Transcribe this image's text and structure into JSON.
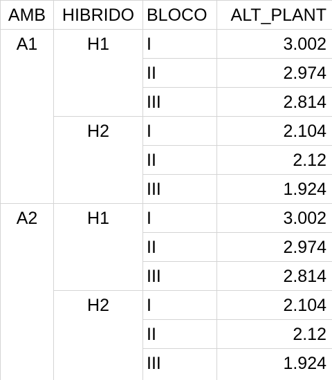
{
  "sheet": {
    "headers": [
      "AMB",
      "HIBRIDO",
      "BLOCO",
      "ALT_PLANT"
    ],
    "rows": [
      {
        "amb": "A1",
        "hibrido": "H1",
        "bloco": "I",
        "alt_plant": "3.002"
      },
      {
        "amb": "",
        "hibrido": "",
        "bloco": "II",
        "alt_plant": "2.974"
      },
      {
        "amb": "",
        "hibrido": "",
        "bloco": "III",
        "alt_plant": "2.814"
      },
      {
        "amb": "",
        "hibrido": "H2",
        "bloco": "I",
        "alt_plant": "2.104"
      },
      {
        "amb": "",
        "hibrido": "",
        "bloco": "II",
        "alt_plant": "2.12"
      },
      {
        "amb": "",
        "hibrido": "",
        "bloco": "III",
        "alt_plant": "1.924"
      },
      {
        "amb": "A2",
        "hibrido": "H1",
        "bloco": "I",
        "alt_plant": "3.002"
      },
      {
        "amb": "",
        "hibrido": "",
        "bloco": "II",
        "alt_plant": "2.974"
      },
      {
        "amb": "",
        "hibrido": "",
        "bloco": "III",
        "alt_plant": "2.814"
      },
      {
        "amb": "",
        "hibrido": "H2",
        "bloco": "I",
        "alt_plant": "2.104"
      },
      {
        "amb": "",
        "hibrido": "",
        "bloco": "II",
        "alt_plant": "2.12"
      },
      {
        "amb": "",
        "hibrido": "",
        "bloco": "III",
        "alt_plant": "1.924"
      }
    ]
  }
}
